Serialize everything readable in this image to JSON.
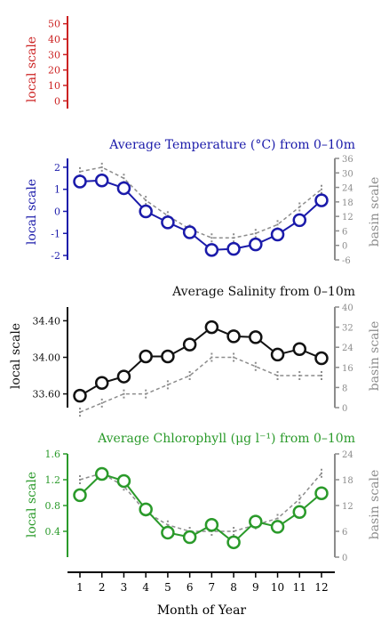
{
  "x_axis": {
    "label": "Month of Year",
    "ticks": [
      "1",
      "2",
      "3",
      "4",
      "5",
      "6",
      "7",
      "8",
      "9",
      "10",
      "11",
      "12"
    ]
  },
  "colors": {
    "top": "#cc2222",
    "temperature": "#1a1aaa",
    "salinity": "#111111",
    "chlorophyll": "#2a9a2a",
    "basin": "#8c8c8c"
  },
  "chart_data": [
    {
      "type": "line",
      "title": "",
      "ylabel": "local scale",
      "y2label": "",
      "ylim": [
        -5,
        55
      ],
      "yticks": [
        "50",
        "40",
        "30",
        "20",
        "10",
        "0"
      ],
      "y2ticks": [],
      "x": [
        1,
        2,
        3,
        4,
        5,
        6,
        7,
        8,
        9,
        10,
        11,
        12
      ],
      "series": [],
      "basin_series": [],
      "grid": false
    },
    {
      "type": "line",
      "title": "Average Temperature (°C) from 0–10m",
      "ylabel": "local scale",
      "y2label": "basin scale",
      "ylim": [
        -2.2,
        2.4
      ],
      "y2lim": [
        -6,
        36
      ],
      "yticks": [
        "2",
        "1",
        "0",
        "-1",
        "-2"
      ],
      "y2ticks": [
        "36",
        "30",
        "24",
        "18",
        "12",
        "6",
        "0",
        "-6"
      ],
      "x": [
        1,
        2,
        3,
        4,
        5,
        6,
        7,
        8,
        9,
        10,
        11,
        12
      ],
      "series": [
        {
          "values": [
            1.35,
            1.4,
            1.05,
            0.0,
            -0.5,
            -0.95,
            -1.75,
            -1.7,
            -1.5,
            -1.05,
            -0.4,
            0.5
          ]
        }
      ],
      "basin_series": [
        {
          "values": [
            1.8,
            2.0,
            1.5,
            0.5,
            -0.2,
            -0.8,
            -1.2,
            -1.2,
            -1.0,
            -0.6,
            0.2,
            1.0
          ]
        }
      ],
      "grid": false
    },
    {
      "type": "line",
      "title": "Average Salinity from 0–10m",
      "ylabel": "local scale",
      "y2label": "basin scale",
      "ylim": [
        33.45,
        34.55
      ],
      "y2lim": [
        0,
        40
      ],
      "yticks": [
        "34.40",
        "34.00",
        "33.60"
      ],
      "y2ticks": [
        "40",
        "32",
        "24",
        "16",
        "8",
        "0"
      ],
      "x": [
        1,
        2,
        3,
        4,
        5,
        6,
        7,
        8,
        9,
        10,
        11,
        12
      ],
      "series": [
        {
          "values": [
            33.58,
            33.72,
            33.79,
            34.01,
            34.01,
            34.14,
            34.33,
            34.23,
            34.22,
            34.03,
            34.09,
            33.99
          ]
        }
      ],
      "basin_series": [
        {
          "values": [
            33.4,
            33.5,
            33.6,
            33.6,
            33.7,
            33.8,
            34.0,
            34.0,
            33.9,
            33.8,
            33.8,
            33.8
          ]
        }
      ],
      "grid": false
    },
    {
      "type": "line",
      "title": "Average Chlorophyll (μg l⁻¹) from 0–10m",
      "ylabel": "local scale",
      "y2label": "basin scale",
      "ylim": [
        0,
        1.6
      ],
      "y2lim": [
        0,
        24
      ],
      "yticks": [
        "1.6",
        "1.2",
        "0.8",
        "0.4"
      ],
      "y2ticks": [
        "24",
        "18",
        "12",
        "6",
        "0"
      ],
      "x": [
        1,
        2,
        3,
        4,
        5,
        6,
        7,
        8,
        9,
        10,
        11,
        12
      ],
      "series": [
        {
          "values": [
            0.96,
            1.29,
            1.18,
            0.74,
            0.38,
            0.31,
            0.5,
            0.23,
            0.55,
            0.47,
            0.7,
            0.99
          ]
        }
      ],
      "basin_series": [
        {
          "values": [
            1.2,
            1.3,
            1.1,
            0.7,
            0.5,
            0.4,
            0.4,
            0.4,
            0.5,
            0.6,
            0.9,
            1.3
          ]
        }
      ],
      "grid": false
    }
  ]
}
